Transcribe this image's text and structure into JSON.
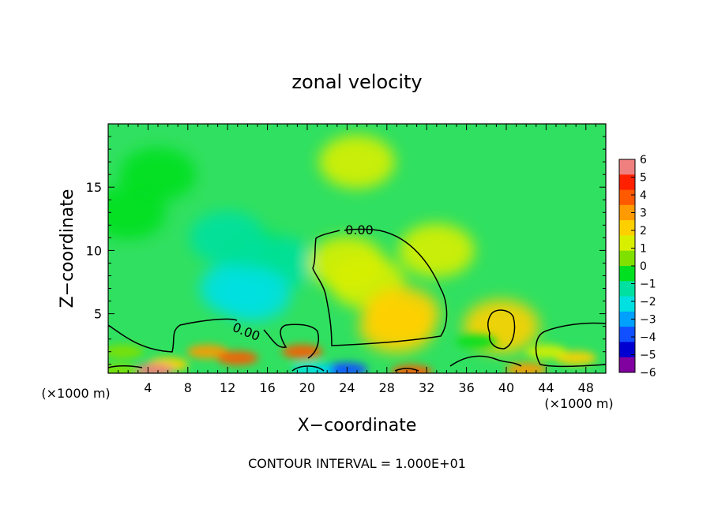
{
  "chart_data": {
    "type": "heatmap",
    "title": "zonal velocity",
    "xlabel": "X−coordinate",
    "ylabel": "Z−coordinate",
    "x_unit_left": "(×1000 m)",
    "x_unit_right": "(×1000 m)",
    "footer": "CONTOUR INTERVAL = 1.000E+01",
    "xlim": [
      0,
      50
    ],
    "ylim": [
      0.3,
      20
    ],
    "x_ticks": [
      4,
      8,
      12,
      16,
      20,
      24,
      28,
      32,
      36,
      40,
      44,
      48
    ],
    "y_ticks": [
      5,
      10,
      15
    ],
    "contour_labels": [
      "0.00",
      "0.00"
    ],
    "colorbar": {
      "levels": [
        6,
        5,
        4,
        3,
        2,
        1,
        0,
        -1,
        -2,
        -3,
        -4,
        -5,
        -6
      ],
      "colors": [
        "#f08080",
        "#ff2000",
        "#ff5a00",
        "#ff9a00",
        "#ffd000",
        "#d8f000",
        "#80e000",
        "#00e020",
        "#00e0a0",
        "#00e0e0",
        "#00a0ff",
        "#1050ff",
        "#0000d0",
        "#8000a0"
      ]
    },
    "features": [
      {
        "x": 25,
        "z": 17,
        "value": 0.1
      },
      {
        "x": 2,
        "z": 13,
        "value": -1.6
      },
      {
        "x": 5,
        "z": 16,
        "value": -1.4
      },
      {
        "x": 15,
        "z": 9.5,
        "value": -1.5
      },
      {
        "x": 13,
        "z": 7,
        "value": -3
      },
      {
        "x": 17,
        "z": 9,
        "value": -2.8
      },
      {
        "x": 14.5,
        "z": 6.5,
        "value": -3.5
      },
      {
        "x": 12,
        "z": 11,
        "value": -2.2
      },
      {
        "x": 26,
        "z": 7.5,
        "value": 1
      },
      {
        "x": 29.5,
        "z": 5,
        "value": 2
      },
      {
        "x": 29,
        "z": 4,
        "value": 1.5
      },
      {
        "x": 24,
        "z": 9,
        "value": 0.8
      },
      {
        "x": 33,
        "z": 10,
        "value": 0.4
      },
      {
        "x": 10,
        "z": 2,
        "value": 3
      },
      {
        "x": 13,
        "z": 1.5,
        "value": 3.5
      },
      {
        "x": 19.5,
        "z": 2,
        "value": 4
      },
      {
        "x": 6,
        "z": 1,
        "value": 2
      },
      {
        "x": 4.5,
        "z": 0.5,
        "value": 5.5
      },
      {
        "x": 22.5,
        "z": 0.5,
        "value": -4
      },
      {
        "x": 24,
        "z": 0.6,
        "value": -5
      },
      {
        "x": 20.5,
        "z": 0.6,
        "value": -3
      },
      {
        "x": 30.5,
        "z": 0.4,
        "value": 4
      },
      {
        "x": 47,
        "z": 1.5,
        "value": 2
      },
      {
        "x": 44,
        "z": 2,
        "value": 1
      },
      {
        "x": 39.5,
        "z": 4,
        "value": 1.2
      },
      {
        "x": 37,
        "z": 2.8,
        "value": -1.8
      },
      {
        "x": 1.5,
        "z": 2,
        "value": -0.5
      },
      {
        "x": 1,
        "z": 0.5,
        "value": -0.8
      },
      {
        "x": 42,
        "z": 0.6,
        "value": 3
      }
    ]
  }
}
